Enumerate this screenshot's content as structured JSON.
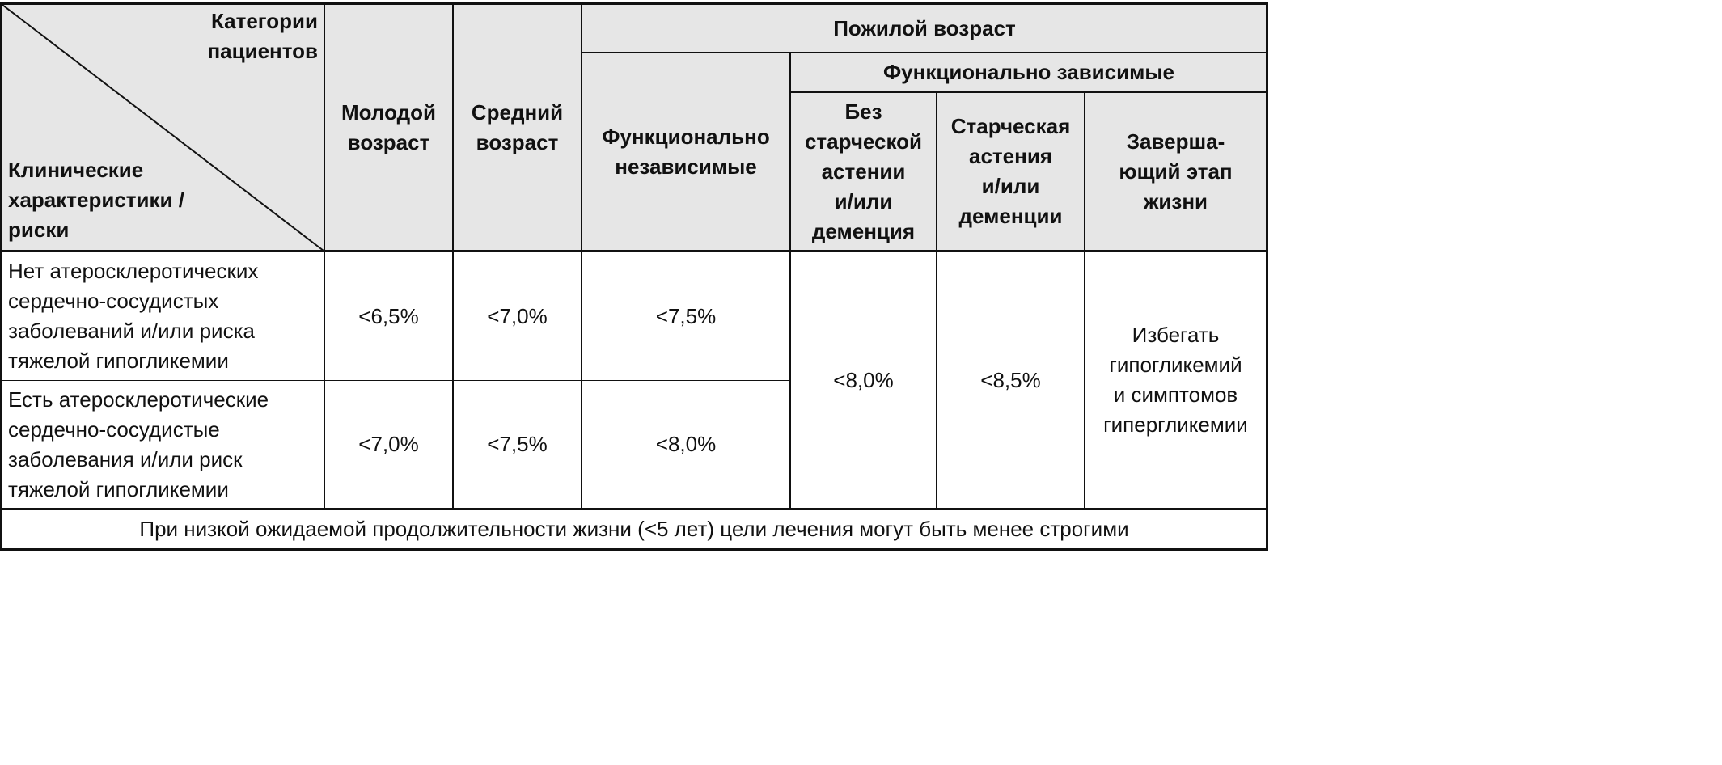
{
  "table": {
    "corner": {
      "top_label": "Категории\nпациентов",
      "bottom_label": "Клинические\nхарактеристики /\nриски"
    },
    "headers": {
      "young": "Молодой\nвозраст",
      "middle": "Средний\nвозраст",
      "elderly": "Пожилой возраст",
      "functionally_independent": "Функционально\nнезависимые",
      "functionally_dependent": "Функционально зависимые",
      "no_frailty": "Без\nстарческой\nастении\nи/или\nдеменция",
      "frailty": "Старческая\nастения\nи/или\nдеменции",
      "end_of_life": "Заверша-\nющий этап\nжизни"
    },
    "rows": [
      {
        "label": "Нет атеросклеротических\nсердечно-сосудистых\nзаболеваний и/или риска\nтяжелой гипогликемии",
        "young": "<6,5%",
        "middle": "<7,0%",
        "independent": "<7,5%"
      },
      {
        "label": "Есть атеросклеротические\nсердечно-сосудистые\nзаболевания и/или риск\nтяжелой гипогликемии",
        "young": "<7,0%",
        "middle": "<7,5%",
        "independent": "<8,0%"
      }
    ],
    "merged": {
      "no_frailty": "<8,0%",
      "frailty": "<8,5%",
      "end_of_life": "Избегать\nгипогликемий\nи симптомов\nгипергликемии"
    },
    "footer": "При низкой ожидаемой продолжительности жизни (<5 лет) цели лечения могут быть менее строгими"
  }
}
